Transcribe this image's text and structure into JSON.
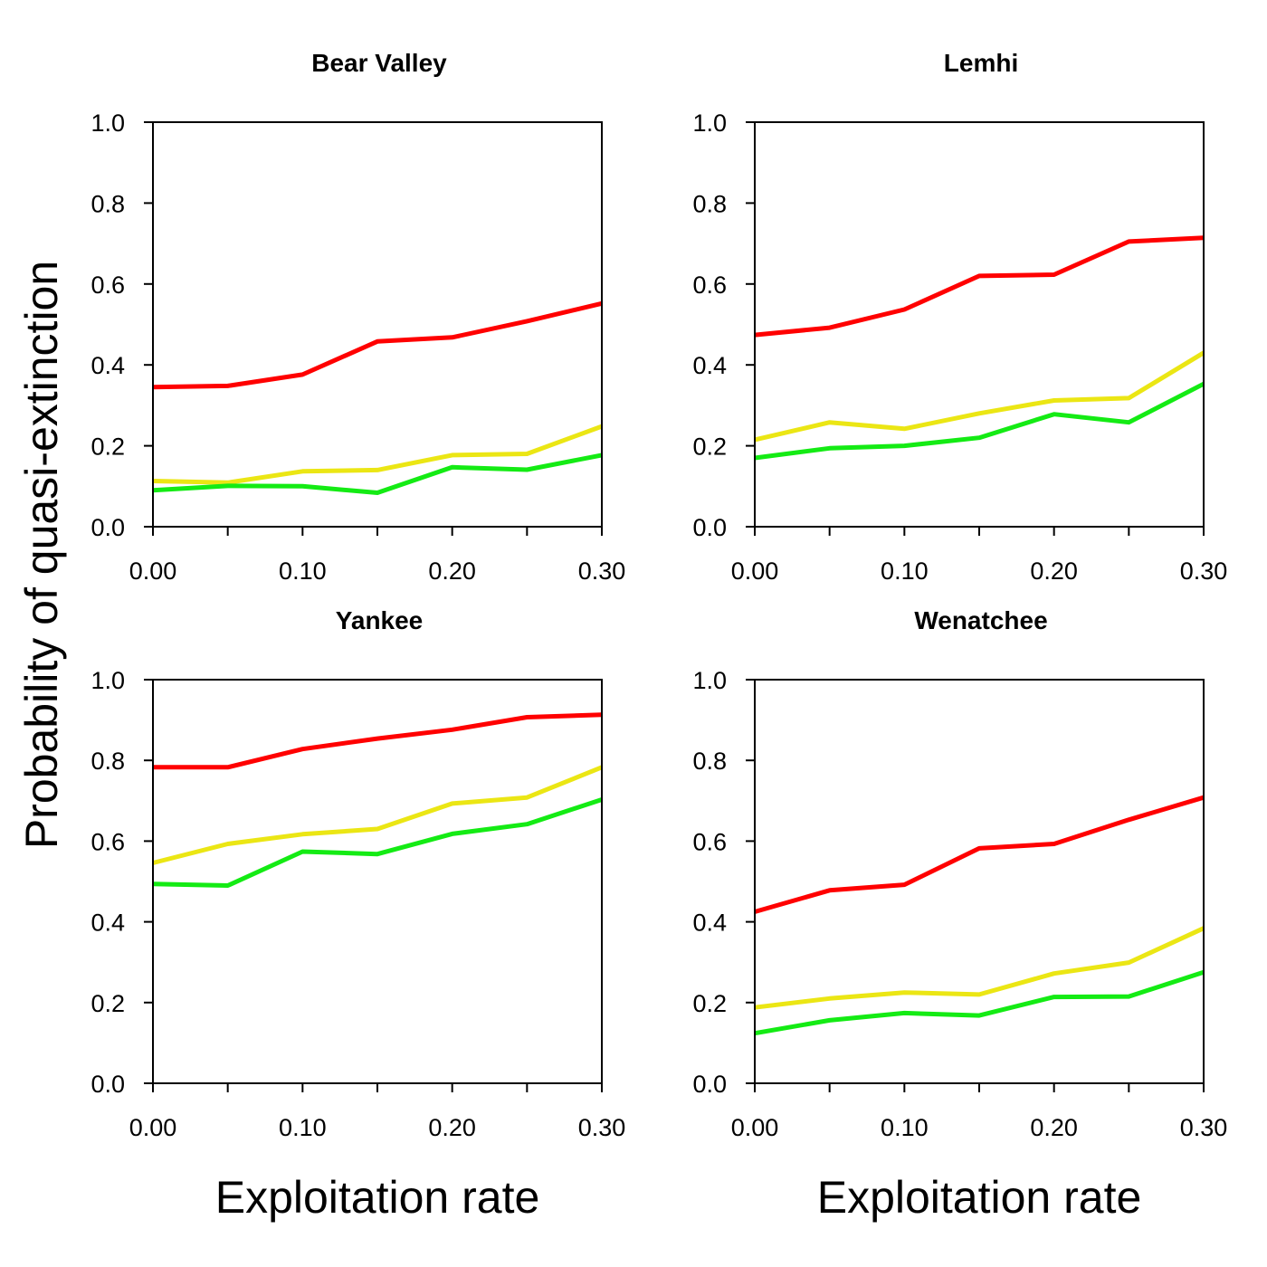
{
  "colors": {
    "red": "#ff0000",
    "yellow": "#ebe614",
    "green": "#14eb14"
  },
  "figure": {
    "ylabel": "Probability of quasi-extinction",
    "xlabels": [
      "Exploitation rate",
      "Exploitation rate"
    ]
  },
  "chart_data": [
    {
      "type": "line",
      "title": "Bear Valley",
      "xlabel": "",
      "ylabel": "",
      "x": [
        0.0,
        0.05,
        0.1,
        0.15,
        0.2,
        0.25,
        0.3
      ],
      "xlim": [
        0.0,
        0.3
      ],
      "ylim": [
        0.0,
        1.0
      ],
      "xticks": [
        "0.00",
        "0.10",
        "0.20",
        "0.30"
      ],
      "yticks": [
        "0.0",
        "0.2",
        "0.4",
        "0.6",
        "0.8",
        "1.0"
      ],
      "grid": false,
      "series": [
        {
          "color": "red",
          "values": [
            0.345,
            0.348,
            0.376,
            0.458,
            0.468,
            0.508,
            0.552
          ]
        },
        {
          "color": "yellow",
          "values": [
            0.113,
            0.109,
            0.137,
            0.14,
            0.177,
            0.18,
            0.248
          ]
        },
        {
          "color": "green",
          "values": [
            0.09,
            0.101,
            0.1,
            0.084,
            0.147,
            0.141,
            0.177
          ]
        }
      ]
    },
    {
      "type": "line",
      "title": "Lemhi",
      "xlabel": "",
      "ylabel": "",
      "x": [
        0.0,
        0.05,
        0.1,
        0.15,
        0.2,
        0.25,
        0.3
      ],
      "xlim": [
        0.0,
        0.3
      ],
      "ylim": [
        0.0,
        1.0
      ],
      "xticks": [
        "0.00",
        "0.10",
        "0.20",
        "0.30"
      ],
      "yticks": [
        "0.0",
        "0.2",
        "0.4",
        "0.6",
        "0.8",
        "1.0"
      ],
      "grid": false,
      "series": [
        {
          "color": "red",
          "values": [
            0.474,
            0.492,
            0.537,
            0.62,
            0.623,
            0.705,
            0.714
          ]
        },
        {
          "color": "yellow",
          "values": [
            0.215,
            0.258,
            0.242,
            0.28,
            0.312,
            0.318,
            0.43
          ]
        },
        {
          "color": "green",
          "values": [
            0.17,
            0.194,
            0.2,
            0.22,
            0.278,
            0.258,
            0.353
          ]
        }
      ]
    },
    {
      "type": "line",
      "title": "Yankee",
      "xlabel": "",
      "ylabel": "",
      "x": [
        0.0,
        0.05,
        0.1,
        0.15,
        0.2,
        0.25,
        0.3
      ],
      "xlim": [
        0.0,
        0.3
      ],
      "ylim": [
        0.0,
        1.0
      ],
      "xticks": [
        "0.00",
        "0.10",
        "0.20",
        "0.30"
      ],
      "yticks": [
        "0.0",
        "0.2",
        "0.4",
        "0.6",
        "0.8",
        "1.0"
      ],
      "grid": false,
      "series": [
        {
          "color": "red",
          "values": [
            0.783,
            0.783,
            0.828,
            0.854,
            0.876,
            0.907,
            0.913
          ]
        },
        {
          "color": "yellow",
          "values": [
            0.546,
            0.593,
            0.617,
            0.63,
            0.693,
            0.708,
            0.783
          ]
        },
        {
          "color": "green",
          "values": [
            0.494,
            0.49,
            0.574,
            0.568,
            0.618,
            0.642,
            0.703
          ]
        }
      ]
    },
    {
      "type": "line",
      "title": "Wenatchee",
      "xlabel": "",
      "ylabel": "",
      "x": [
        0.0,
        0.05,
        0.1,
        0.15,
        0.2,
        0.25,
        0.3
      ],
      "xlim": [
        0.0,
        0.3
      ],
      "ylim": [
        0.0,
        1.0
      ],
      "xticks": [
        "0.00",
        "0.10",
        "0.20",
        "0.30"
      ],
      "yticks": [
        "0.0",
        "0.2",
        "0.4",
        "0.6",
        "0.8",
        "1.0"
      ],
      "grid": false,
      "series": [
        {
          "color": "red",
          "values": [
            0.425,
            0.478,
            0.492,
            0.582,
            0.593,
            0.653,
            0.708
          ]
        },
        {
          "color": "yellow",
          "values": [
            0.188,
            0.21,
            0.225,
            0.22,
            0.272,
            0.299,
            0.384
          ]
        },
        {
          "color": "green",
          "values": [
            0.124,
            0.156,
            0.174,
            0.168,
            0.214,
            0.215,
            0.275
          ]
        }
      ]
    }
  ]
}
